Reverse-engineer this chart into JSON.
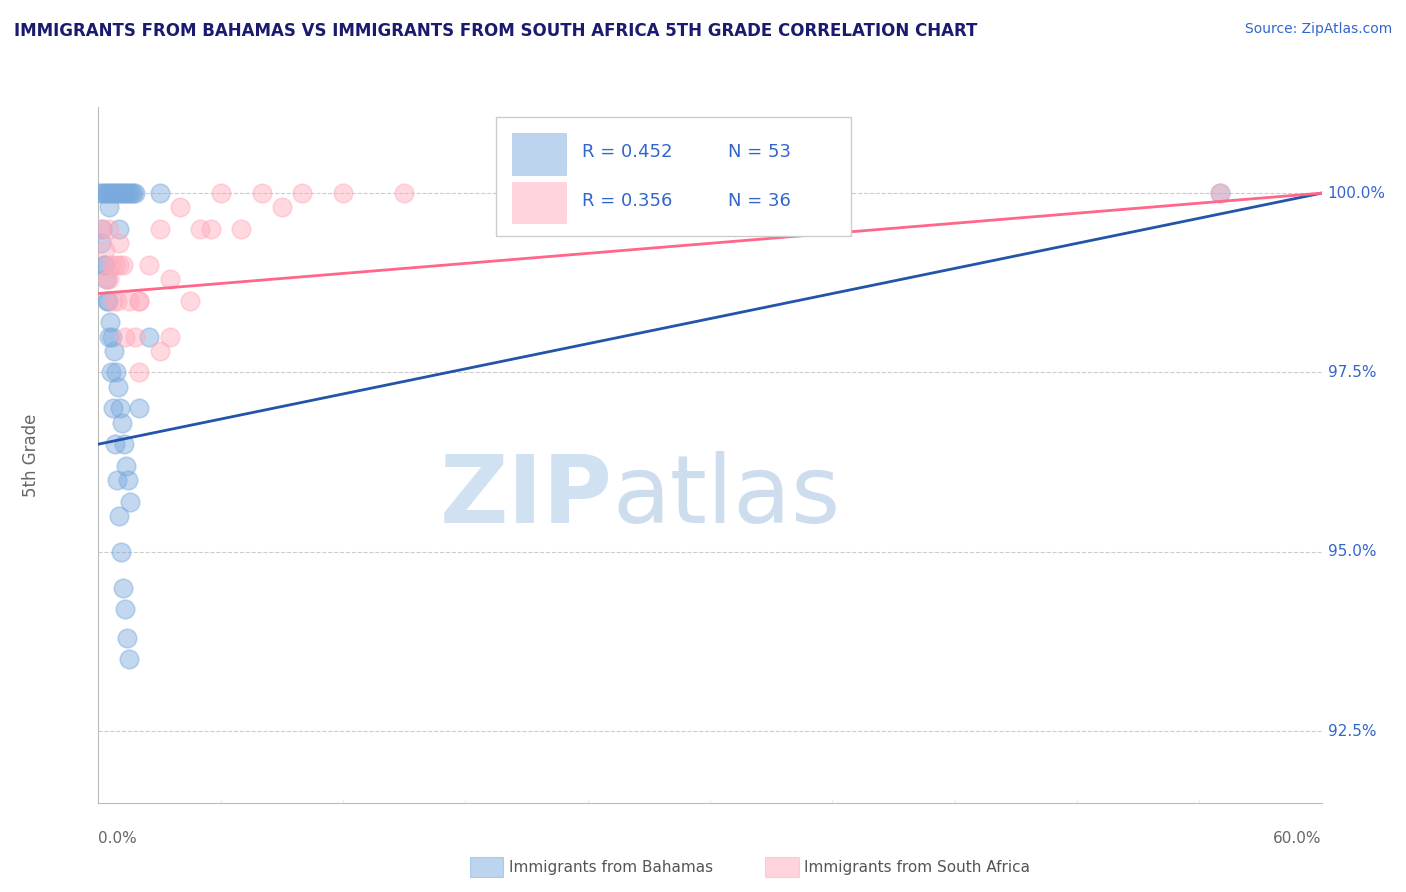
{
  "title": "IMMIGRANTS FROM BAHAMAS VS IMMIGRANTS FROM SOUTH AFRICA 5TH GRADE CORRELATION CHART",
  "source": "Source: ZipAtlas.com",
  "ylabel": "5th Grade",
  "ytick_values": [
    92.5,
    95.0,
    97.5,
    100.0
  ],
  "xmin": 0.0,
  "xmax": 60.0,
  "ymin": 91.5,
  "ymax": 101.2,
  "legend_R1": "0.452",
  "legend_N1": "53",
  "legend_R2": "0.356",
  "legend_N2": "36",
  "legend_label1": "Immigrants from Bahamas",
  "legend_label2": "Immigrants from South Africa",
  "watermark_zip": "ZIP",
  "watermark_atlas": "atlas",
  "watermark_color_zip": "#c8ddf0",
  "watermark_color_atlas": "#b8cfe8",
  "blue_color": "#7aaadd",
  "pink_color": "#ffaabb",
  "blue_line_color": "#2255aa",
  "pink_line_color": "#ff6688",
  "title_color": "#1a1a6e",
  "axis_label_color": "#3366cc",
  "source_color": "#3366cc",
  "blue_scatter_x": [
    0.1,
    0.2,
    0.3,
    0.4,
    0.5,
    0.5,
    0.6,
    0.7,
    0.8,
    0.9,
    1.0,
    1.0,
    1.1,
    1.2,
    1.3,
    1.4,
    1.5,
    1.6,
    1.7,
    1.8,
    0.15,
    0.25,
    0.35,
    0.45,
    0.55,
    0.65,
    0.75,
    0.85,
    0.95,
    1.05,
    1.15,
    1.25,
    1.35,
    1.45,
    1.55,
    0.2,
    0.3,
    0.4,
    0.5,
    0.6,
    0.7,
    0.8,
    0.9,
    1.0,
    1.1,
    1.2,
    1.3,
    1.4,
    1.5,
    2.0,
    2.5,
    3.0,
    55.0
  ],
  "blue_scatter_y": [
    100.0,
    100.0,
    100.0,
    100.0,
    100.0,
    99.8,
    100.0,
    100.0,
    100.0,
    100.0,
    100.0,
    99.5,
    100.0,
    100.0,
    100.0,
    100.0,
    100.0,
    100.0,
    100.0,
    100.0,
    99.3,
    99.0,
    98.8,
    98.5,
    98.2,
    98.0,
    97.8,
    97.5,
    97.3,
    97.0,
    96.8,
    96.5,
    96.2,
    96.0,
    95.7,
    99.5,
    99.0,
    98.5,
    98.0,
    97.5,
    97.0,
    96.5,
    96.0,
    95.5,
    95.0,
    94.5,
    94.2,
    93.8,
    93.5,
    97.0,
    98.0,
    100.0,
    100.0
  ],
  "pink_scatter_x": [
    0.2,
    0.3,
    0.5,
    0.7,
    0.8,
    1.0,
    1.2,
    1.5,
    1.8,
    2.0,
    2.5,
    3.0,
    3.5,
    4.0,
    5.0,
    6.0,
    8.0,
    10.0,
    15.0,
    20.0,
    0.4,
    0.6,
    0.9,
    1.3,
    2.0,
    3.0,
    4.5,
    7.0,
    12.0,
    55.0,
    0.5,
    1.0,
    2.0,
    3.5,
    5.5,
    9.0
  ],
  "pink_scatter_y": [
    99.5,
    99.2,
    98.8,
    98.5,
    99.0,
    99.3,
    99.0,
    98.5,
    98.0,
    98.5,
    99.0,
    99.5,
    98.0,
    99.8,
    99.5,
    100.0,
    100.0,
    100.0,
    100.0,
    100.0,
    98.8,
    99.0,
    98.5,
    98.0,
    97.5,
    97.8,
    98.5,
    99.5,
    100.0,
    100.0,
    99.5,
    99.0,
    98.5,
    98.8,
    99.5,
    99.8
  ]
}
